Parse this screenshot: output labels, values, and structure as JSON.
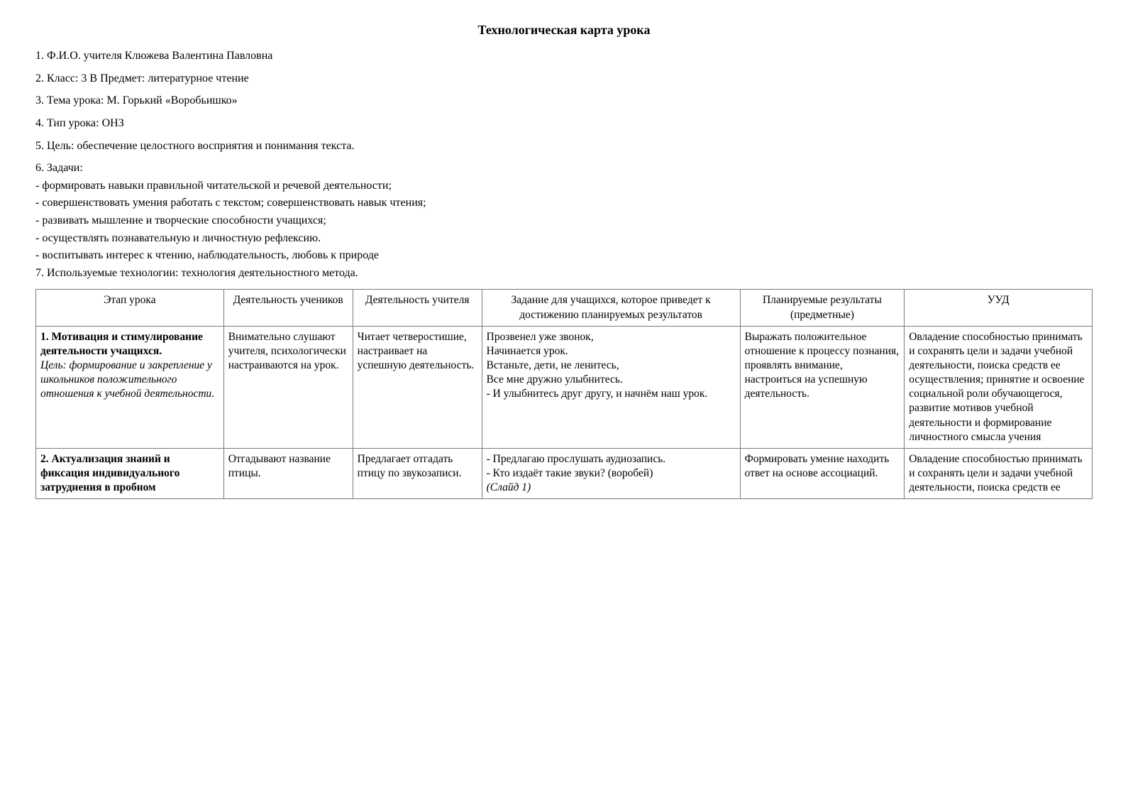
{
  "title": "Технологическая карта  урока",
  "meta": {
    "line1": "1. Ф.И.О. учителя  Клюжева Валентина Павловна",
    "line2": "2. Класс: 3 В        Предмет:  литературное чтение",
    "line3": "3. Тема урока: М. Горький «Воробьишко»",
    "line4": "4. Тип урока: ОНЗ",
    "line5": " 5. Цель: обеспечение целостного восприятия и понимания текста.",
    "line6": " 6. Задачи:",
    "tasks": {
      "t1": "-  формировать  навыки правильной читательской и речевой деятельности;",
      "t2": "-  совершенствовать умения работать с текстом; совершенствовать навык чтения;",
      "t3": "- развивать мышление и творческие способности учащихся;",
      "t4": "- осуществлять познавательную и личностную рефлексию.",
      "t5": "-  воспитывать интерес к чтению, наблюдательность, любовь к природе"
    },
    "line7": "7. Используемые технологии: технология деятельностного метода."
  },
  "table": {
    "headers": {
      "stage": "Этап урока",
      "students": "Деятельность учеников",
      "teacher": "Деятельность учителя",
      "task": "Задание для учащихся, которое приведет к достижению планируемых результатов",
      "results": "Планируемые результаты (предметные)",
      "uud": "УУД"
    },
    "rows": {
      "r1": {
        "stage_bold": "1. Мотивация и стимулирование деятельности учащихся.",
        "stage_italic": "Цель: формирование и закрепление у школьников положительного отношения  к учебной деятельности.",
        "students": "Внимательно слушают учителя, психологически настраиваются на урок.",
        "teacher": "Читает четверостишие, настраивает на успешную деятельность.",
        "task": "Прозвенел уже звонок,\nНачинается урок.\nВстаньте, дети, не ленитесь,\nВсе мне дружно улыбнитесь.\n - И улыбнитесь друг другу, и начнём наш урок.",
        "results": "Выражать положительное отношение к процессу познания, проявлять внимание, настроиться на успешную деятельность.",
        "uud": "Овладение способностью принимать и сохранять цели и задачи учебной деятельности, поиска средств ее осуществления; принятие и освоение социальной роли обучающегося, развитие мотивов учебной деятельности и формирование личностного смысла учения"
      },
      "r2": {
        "stage_bold": "2. Актуализация знаний и фиксация индивидуального затруднения в пробном",
        "students": "Отгадывают название птицы.",
        "teacher": "Предлагает отгадать птицу по звукозаписи.",
        "task_plain": "- Предлагаю прослушать аудиозапись.\n- Кто издаёт такие звуки? (воробей)",
        "task_italic": "(Слайд 1)",
        "results": "Формировать умение находить ответ на основе ассоциаций.",
        "uud": "Овладение способностью принимать и сохранять цели и задачи учебной деятельности, поиска средств ее"
      }
    }
  }
}
